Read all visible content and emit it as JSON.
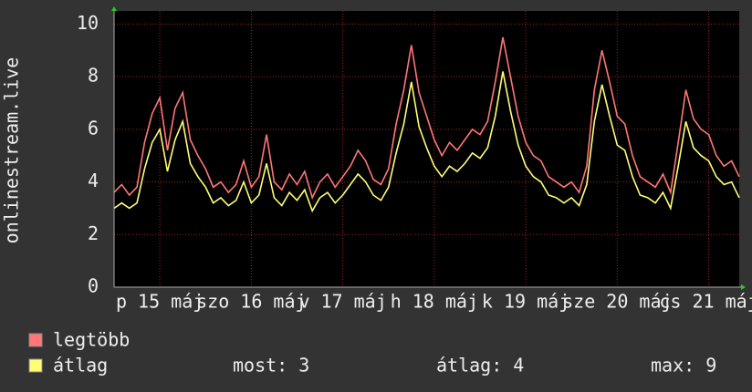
{
  "chart_data": {
    "type": "line",
    "y_label": "onlinestream.live",
    "x": [
      0,
      2,
      4,
      6,
      8,
      10,
      12,
      14,
      16,
      18,
      20,
      22,
      24,
      26,
      28,
      30,
      32,
      34,
      36,
      38,
      40,
      42,
      44,
      46,
      48,
      50,
      52,
      54,
      56,
      58,
      60,
      62,
      64,
      66,
      68,
      70,
      72,
      74,
      76,
      78,
      80,
      82,
      84,
      86,
      88,
      90,
      92,
      94,
      96,
      98,
      100,
      102,
      104,
      106,
      108,
      110,
      112,
      114,
      116,
      118,
      120,
      122,
      124,
      126,
      128,
      130,
      132,
      134,
      136,
      138,
      140,
      142,
      144,
      146,
      148,
      150,
      152,
      154,
      156,
      158,
      160,
      162,
      164
    ],
    "series": [
      {
        "name": "legtöbb",
        "color": "#ff7777",
        "values": [
          3.6,
          3.9,
          3.5,
          3.8,
          5.5,
          6.6,
          7.2,
          5.2,
          6.8,
          7.4,
          5.6,
          5.0,
          4.5,
          3.8,
          4.0,
          3.6,
          3.9,
          4.8,
          3.8,
          4.2,
          5.8,
          4.0,
          3.7,
          4.3,
          3.9,
          4.4,
          3.4,
          4.0,
          4.3,
          3.8,
          4.2,
          4.6,
          5.2,
          4.8,
          4.1,
          3.9,
          4.5,
          6.2,
          7.5,
          9.2,
          7.4,
          6.5,
          5.6,
          5.0,
          5.5,
          5.2,
          5.6,
          6.0,
          5.8,
          6.3,
          7.8,
          9.5,
          8.0,
          6.5,
          5.5,
          5.0,
          4.8,
          4.2,
          4.0,
          3.8,
          4.0,
          3.6,
          4.6,
          7.5,
          9.0,
          7.8,
          6.5,
          6.2,
          5.0,
          4.2,
          4.0,
          3.8,
          4.3,
          3.6,
          5.5,
          7.5,
          6.4,
          6.0,
          5.8,
          5.0,
          4.6,
          4.8,
          4.2
        ]
      },
      {
        "name": "átlag",
        "color": "#ffff77",
        "values": [
          3.0,
          3.2,
          3.0,
          3.2,
          4.5,
          5.5,
          6.0,
          4.4,
          5.6,
          6.3,
          4.7,
          4.2,
          3.8,
          3.2,
          3.4,
          3.1,
          3.3,
          4.0,
          3.2,
          3.5,
          4.7,
          3.4,
          3.1,
          3.6,
          3.3,
          3.7,
          2.9,
          3.4,
          3.6,
          3.2,
          3.5,
          3.9,
          4.3,
          4.0,
          3.5,
          3.3,
          3.8,
          5.1,
          6.2,
          7.8,
          6.1,
          5.3,
          4.6,
          4.2,
          4.6,
          4.4,
          4.7,
          5.1,
          4.9,
          5.3,
          6.5,
          8.2,
          6.7,
          5.4,
          4.6,
          4.2,
          4.0,
          3.5,
          3.4,
          3.2,
          3.4,
          3.1,
          3.9,
          6.3,
          7.7,
          6.5,
          5.4,
          5.2,
          4.2,
          3.5,
          3.4,
          3.2,
          3.6,
          3.0,
          4.6,
          6.3,
          5.3,
          5.0,
          4.8,
          4.2,
          3.9,
          4.0,
          3.4
        ]
      }
    ],
    "stats": [
      "most: 3",
      "átlag: 4",
      "max: 9"
    ],
    "xlim": [
      0,
      164
    ],
    "xticks": [
      {
        "value": 12,
        "label": "p 15 máj"
      },
      {
        "value": 36,
        "label": "szo 16 máj"
      },
      {
        "value": 60,
        "label": "v 17 máj"
      },
      {
        "value": 84,
        "label": "h 18 máj"
      },
      {
        "value": 108,
        "label": "k 19 máj"
      },
      {
        "value": 132,
        "label": "sze 20 máj"
      },
      {
        "value": 156,
        "label": "cs 21 máj"
      }
    ],
    "ylim": [
      0,
      10.5
    ],
    "yticks": [
      0,
      2,
      4,
      6,
      8,
      10
    ],
    "grid": true
  }
}
